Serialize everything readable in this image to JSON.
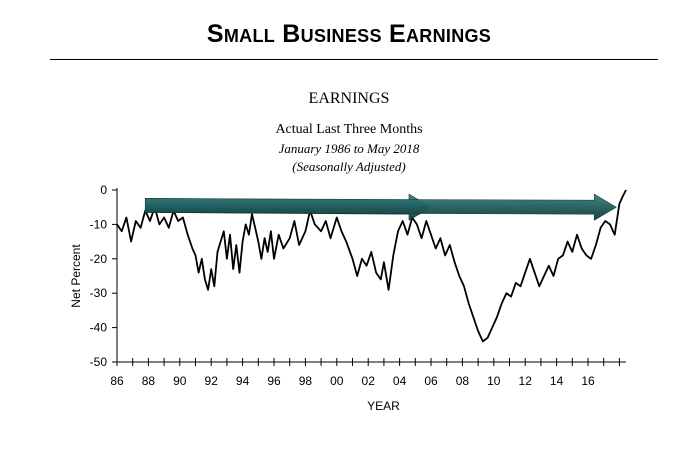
{
  "header": {
    "title": "Small Business Earnings"
  },
  "chart_data": {
    "type": "line",
    "title": "EARNINGS",
    "subtitle": "Actual Last Three Months",
    "date_range": "January 1986 to May 2018",
    "note": "(Seasonally Adjusted)",
    "xlabel": "YEAR",
    "ylabel": "Net Percent",
    "xlim": [
      1986,
      2018.42
    ],
    "ylim": [
      -50,
      0
    ],
    "x_ticks": [
      "86",
      "88",
      "90",
      "92",
      "94",
      "96",
      "98",
      "00",
      "02",
      "04",
      "06",
      "08",
      "10",
      "12",
      "14",
      "16"
    ],
    "y_ticks": [
      "0",
      "-10",
      "-20",
      "-30",
      "-40",
      "-50"
    ],
    "grid": false,
    "series": [
      {
        "color": "#000000",
        "points": [
          [
            1986.0,
            -10
          ],
          [
            1986.3,
            -12
          ],
          [
            1986.6,
            -8
          ],
          [
            1986.9,
            -15
          ],
          [
            1987.2,
            -9
          ],
          [
            1987.5,
            -11
          ],
          [
            1987.8,
            -6
          ],
          [
            1988.1,
            -9
          ],
          [
            1988.4,
            -5
          ],
          [
            1988.7,
            -10
          ],
          [
            1989.0,
            -8
          ],
          [
            1989.3,
            -11
          ],
          [
            1989.6,
            -6
          ],
          [
            1989.9,
            -9
          ],
          [
            1990.2,
            -8
          ],
          [
            1990.5,
            -13
          ],
          [
            1990.8,
            -17
          ],
          [
            1991.0,
            -19
          ],
          [
            1991.2,
            -24
          ],
          [
            1991.4,
            -20
          ],
          [
            1991.6,
            -26
          ],
          [
            1991.8,
            -29
          ],
          [
            1992.0,
            -23
          ],
          [
            1992.2,
            -28
          ],
          [
            1992.4,
            -18
          ],
          [
            1992.6,
            -15
          ],
          [
            1992.8,
            -12
          ],
          [
            1993.0,
            -20
          ],
          [
            1993.2,
            -13
          ],
          [
            1993.4,
            -23
          ],
          [
            1993.6,
            -16
          ],
          [
            1993.8,
            -24
          ],
          [
            1994.0,
            -15
          ],
          [
            1994.2,
            -10
          ],
          [
            1994.4,
            -13
          ],
          [
            1994.6,
            -7
          ],
          [
            1994.8,
            -11
          ],
          [
            1995.0,
            -15
          ],
          [
            1995.2,
            -20
          ],
          [
            1995.4,
            -14
          ],
          [
            1995.6,
            -18
          ],
          [
            1995.8,
            -12
          ],
          [
            1996.0,
            -20
          ],
          [
            1996.3,
            -13
          ],
          [
            1996.6,
            -17
          ],
          [
            1997.0,
            -14
          ],
          [
            1997.3,
            -9
          ],
          [
            1997.6,
            -16
          ],
          [
            1998.0,
            -12
          ],
          [
            1998.3,
            -6
          ],
          [
            1998.6,
            -10
          ],
          [
            1999.0,
            -12
          ],
          [
            1999.3,
            -9
          ],
          [
            1999.6,
            -14
          ],
          [
            2000.0,
            -8
          ],
          [
            2000.3,
            -12
          ],
          [
            2000.6,
            -15
          ],
          [
            2001.0,
            -20
          ],
          [
            2001.3,
            -25
          ],
          [
            2001.6,
            -20
          ],
          [
            2001.9,
            -22
          ],
          [
            2002.2,
            -18
          ],
          [
            2002.5,
            -24
          ],
          [
            2002.8,
            -26
          ],
          [
            2003.0,
            -21
          ],
          [
            2003.3,
            -29
          ],
          [
            2003.6,
            -19
          ],
          [
            2003.9,
            -12
          ],
          [
            2004.2,
            -9
          ],
          [
            2004.5,
            -13
          ],
          [
            2004.8,
            -8
          ],
          [
            2005.1,
            -10
          ],
          [
            2005.4,
            -14
          ],
          [
            2005.7,
            -9
          ],
          [
            2006.0,
            -13
          ],
          [
            2006.3,
            -17
          ],
          [
            2006.6,
            -14
          ],
          [
            2006.9,
            -19
          ],
          [
            2007.2,
            -16
          ],
          [
            2007.5,
            -21
          ],
          [
            2007.8,
            -25
          ],
          [
            2008.1,
            -28
          ],
          [
            2008.4,
            -33
          ],
          [
            2008.7,
            -37
          ],
          [
            2009.0,
            -41
          ],
          [
            2009.3,
            -44
          ],
          [
            2009.6,
            -43
          ],
          [
            2009.9,
            -40
          ],
          [
            2010.2,
            -37
          ],
          [
            2010.5,
            -33
          ],
          [
            2010.8,
            -30
          ],
          [
            2011.1,
            -31
          ],
          [
            2011.4,
            -27
          ],
          [
            2011.7,
            -28
          ],
          [
            2012.0,
            -24
          ],
          [
            2012.3,
            -20
          ],
          [
            2012.6,
            -24
          ],
          [
            2012.9,
            -28
          ],
          [
            2013.2,
            -25
          ],
          [
            2013.5,
            -22
          ],
          [
            2013.8,
            -25
          ],
          [
            2014.1,
            -20
          ],
          [
            2014.4,
            -19
          ],
          [
            2014.7,
            -15
          ],
          [
            2015.0,
            -18
          ],
          [
            2015.3,
            -13
          ],
          [
            2015.6,
            -17
          ],
          [
            2015.9,
            -19
          ],
          [
            2016.2,
            -20
          ],
          [
            2016.5,
            -16
          ],
          [
            2016.8,
            -11
          ],
          [
            2017.1,
            -9
          ],
          [
            2017.4,
            -10
          ],
          [
            2017.7,
            -13
          ],
          [
            2018.0,
            -4
          ],
          [
            2018.2,
            -2
          ],
          [
            2018.42,
            0
          ]
        ]
      }
    ],
    "annotations": [
      {
        "type": "arrow",
        "color": "#1e5c5c",
        "from": [
          1987.8,
          -4.5
        ],
        "to": [
          2006.0,
          -5.0
        ]
      },
      {
        "type": "arrow",
        "color": "#1e5c5c",
        "from": [
          1987.8,
          -4.5
        ],
        "to": [
          2017.8,
          -5.0
        ]
      }
    ]
  }
}
